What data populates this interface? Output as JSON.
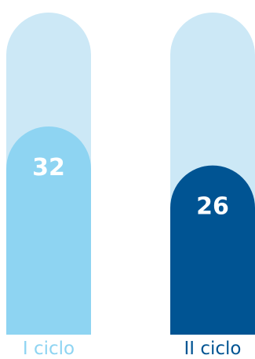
{
  "chart_data": {
    "type": "bar",
    "categories": [
      "I ciclo",
      "II ciclo"
    ],
    "values": [
      32,
      26
    ],
    "ylim": [
      0,
      49.5
    ],
    "title": "",
    "xlabel": "",
    "ylabel": "",
    "grid": false,
    "colors": {
      "background_bars": [
        "#cce8f6",
        "#cce8f6"
      ],
      "bars": [
        "#8ed4f2",
        "#005493"
      ],
      "category_labels": [
        "#8ed4f2",
        "#005493"
      ],
      "value_labels": "#ffffff"
    }
  }
}
